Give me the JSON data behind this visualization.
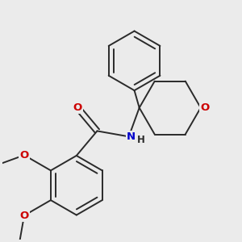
{
  "bg_color": "#ebebeb",
  "bond_color": "#2a2a2a",
  "bond_width": 1.4,
  "dbo": 0.018,
  "atom_colors": {
    "O": "#cc0000",
    "N": "#0000cc",
    "C": "#2a2a2a"
  },
  "font_size": 9.5,
  "font_size_small": 8.5
}
